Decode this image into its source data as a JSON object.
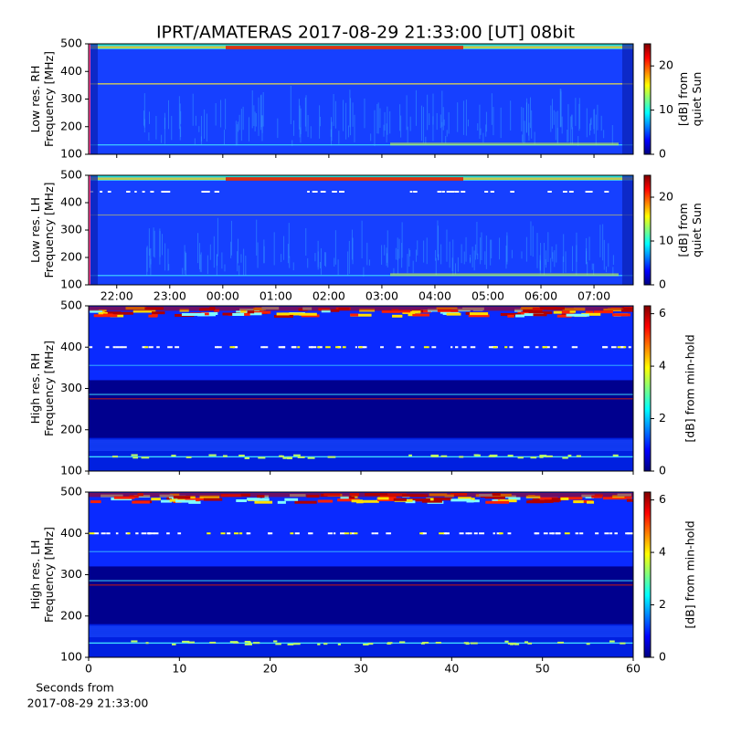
{
  "chart_data": [
    {
      "type": "spectrogram",
      "title": "IPRT/AMATERAS 2017-08-29 21:33:00 [UT]   08bit",
      "ylabel": [
        "Low res. RH",
        "Frequency [MHz]"
      ],
      "ylim": [
        100,
        500
      ],
      "yticks": [
        100,
        200,
        300,
        400,
        500
      ],
      "xlim": [
        21.47,
        31.74
      ],
      "cbar_label": [
        "[dB] from",
        "quiet Sun"
      ],
      "clim": [
        0,
        25
      ],
      "cticks": [
        0,
        10,
        20
      ]
    },
    {
      "type": "spectrogram",
      "ylabel": [
        "Low res. LH",
        "Frequency [MHz]"
      ],
      "ylim": [
        100,
        500
      ],
      "yticks": [
        100,
        200,
        300,
        400,
        500
      ],
      "xlim": [
        21.47,
        31.74
      ],
      "xticks": [
        {
          "value": 22,
          "label": "22:00"
        },
        {
          "value": 23,
          "label": "23:00"
        },
        {
          "value": 24,
          "label": "00:00"
        },
        {
          "value": 25,
          "label": "01:00"
        },
        {
          "value": 26,
          "label": "02:00"
        },
        {
          "value": 27,
          "label": "03:00"
        },
        {
          "value": 28,
          "label": "04:00"
        },
        {
          "value": 29,
          "label": "05:00"
        },
        {
          "value": 30,
          "label": "06:00"
        },
        {
          "value": 31,
          "label": "07:00"
        }
      ],
      "cbar_label": [
        "[dB] from",
        "quiet Sun"
      ],
      "clim": [
        0,
        25
      ],
      "cticks": [
        0,
        10,
        20
      ]
    },
    {
      "type": "spectrogram",
      "ylabel": [
        "High res. RH",
        "Frequency [MHz]"
      ],
      "ylim": [
        100,
        500
      ],
      "yticks": [
        100,
        200,
        300,
        400,
        500
      ],
      "xlim": [
        0,
        60
      ],
      "cbar_label": [
        "[dB] from min-hold"
      ],
      "clim": [
        0,
        6.3
      ],
      "cticks": [
        0,
        2,
        4,
        6
      ]
    },
    {
      "type": "spectrogram",
      "ylabel": [
        "High res. LH",
        "Frequency [MHz]"
      ],
      "ylim": [
        100,
        500
      ],
      "yticks": [
        100,
        200,
        300,
        400,
        500
      ],
      "xlim": [
        0,
        60
      ],
      "xticks": [
        0,
        10,
        20,
        30,
        40,
        50,
        60
      ],
      "xlabel": [
        "Seconds from",
        "2017-08-29 21:33:00"
      ],
      "cbar_label": [
        "[dB] from min-hold"
      ],
      "clim": [
        0,
        6.3
      ],
      "cticks": [
        0,
        2,
        4,
        6
      ]
    }
  ]
}
